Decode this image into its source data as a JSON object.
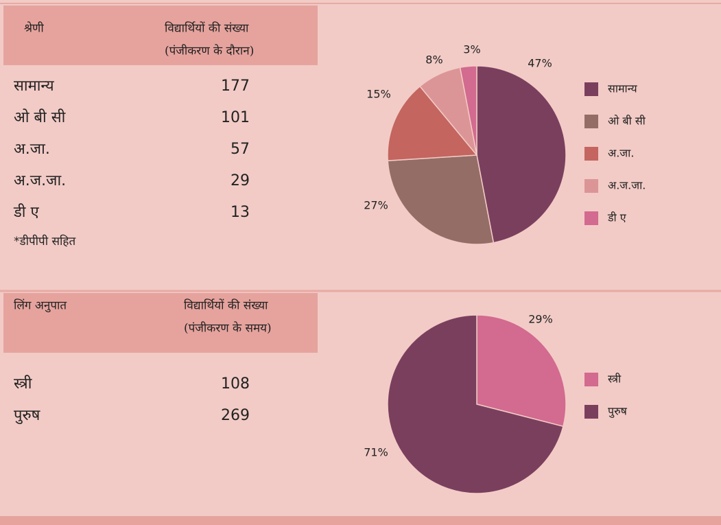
{
  "sections": [
    {
      "header": [
        "श्रेणी",
        "विद्यार्थियों की संख्या",
        "(पंजीकरण के दौरान)"
      ],
      "rows": [
        {
          "label": "सामान्य",
          "count": 177
        },
        {
          "label": "ओ बी सी",
          "count": 101
        },
        {
          "label": "अ.जा.",
          "count": 57
        },
        {
          "label": "अ.ज.जा.",
          "count": 29
        },
        {
          "label": "डी ए",
          "count": 13
        }
      ],
      "note": "*डीपीपी सहित",
      "chart": {
        "type": "pie",
        "values": [
          47,
          27,
          15,
          8,
          3
        ],
        "value_labels": [
          "47%",
          "27%",
          "15%",
          "8%",
          "3%"
        ],
        "colors": [
          "#7b3f5e",
          "#946e66",
          "#c4655f",
          "#dc9596",
          "#d36a8f"
        ]
      }
    },
    {
      "header": [
        "लिंग अनुपात",
        "विद्यार्थियों की संख्या",
        "(पंजीकरण के समय)"
      ],
      "rows": [
        {
          "label": "स्त्री",
          "count": 108
        },
        {
          "label": "पुरुष",
          "count": 269
        }
      ],
      "chart": {
        "type": "pie",
        "values": [
          29,
          71
        ],
        "value_labels": [
          "29%",
          "71%"
        ],
        "colors": [
          "#d36a8f",
          "#7b3f5e"
        ]
      }
    }
  ]
}
